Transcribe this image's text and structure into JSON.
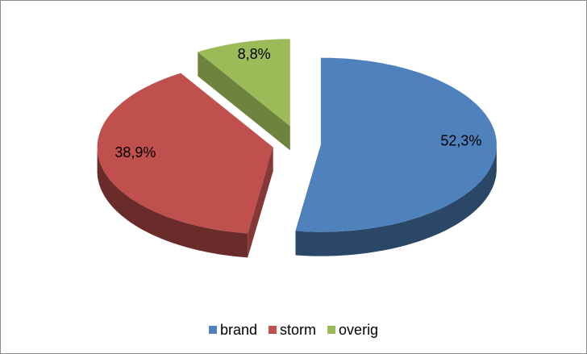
{
  "chart_data": {
    "type": "pie3d",
    "categories": [
      "brand",
      "storm",
      "overig"
    ],
    "values": [
      52.3,
      38.9,
      8.8
    ],
    "value_labels": [
      "52,3%",
      "38,9%",
      "8,8%"
    ],
    "colors": [
      "#4f81bd",
      "#c0504d",
      "#9bbb59"
    ],
    "legend": "bottom"
  }
}
